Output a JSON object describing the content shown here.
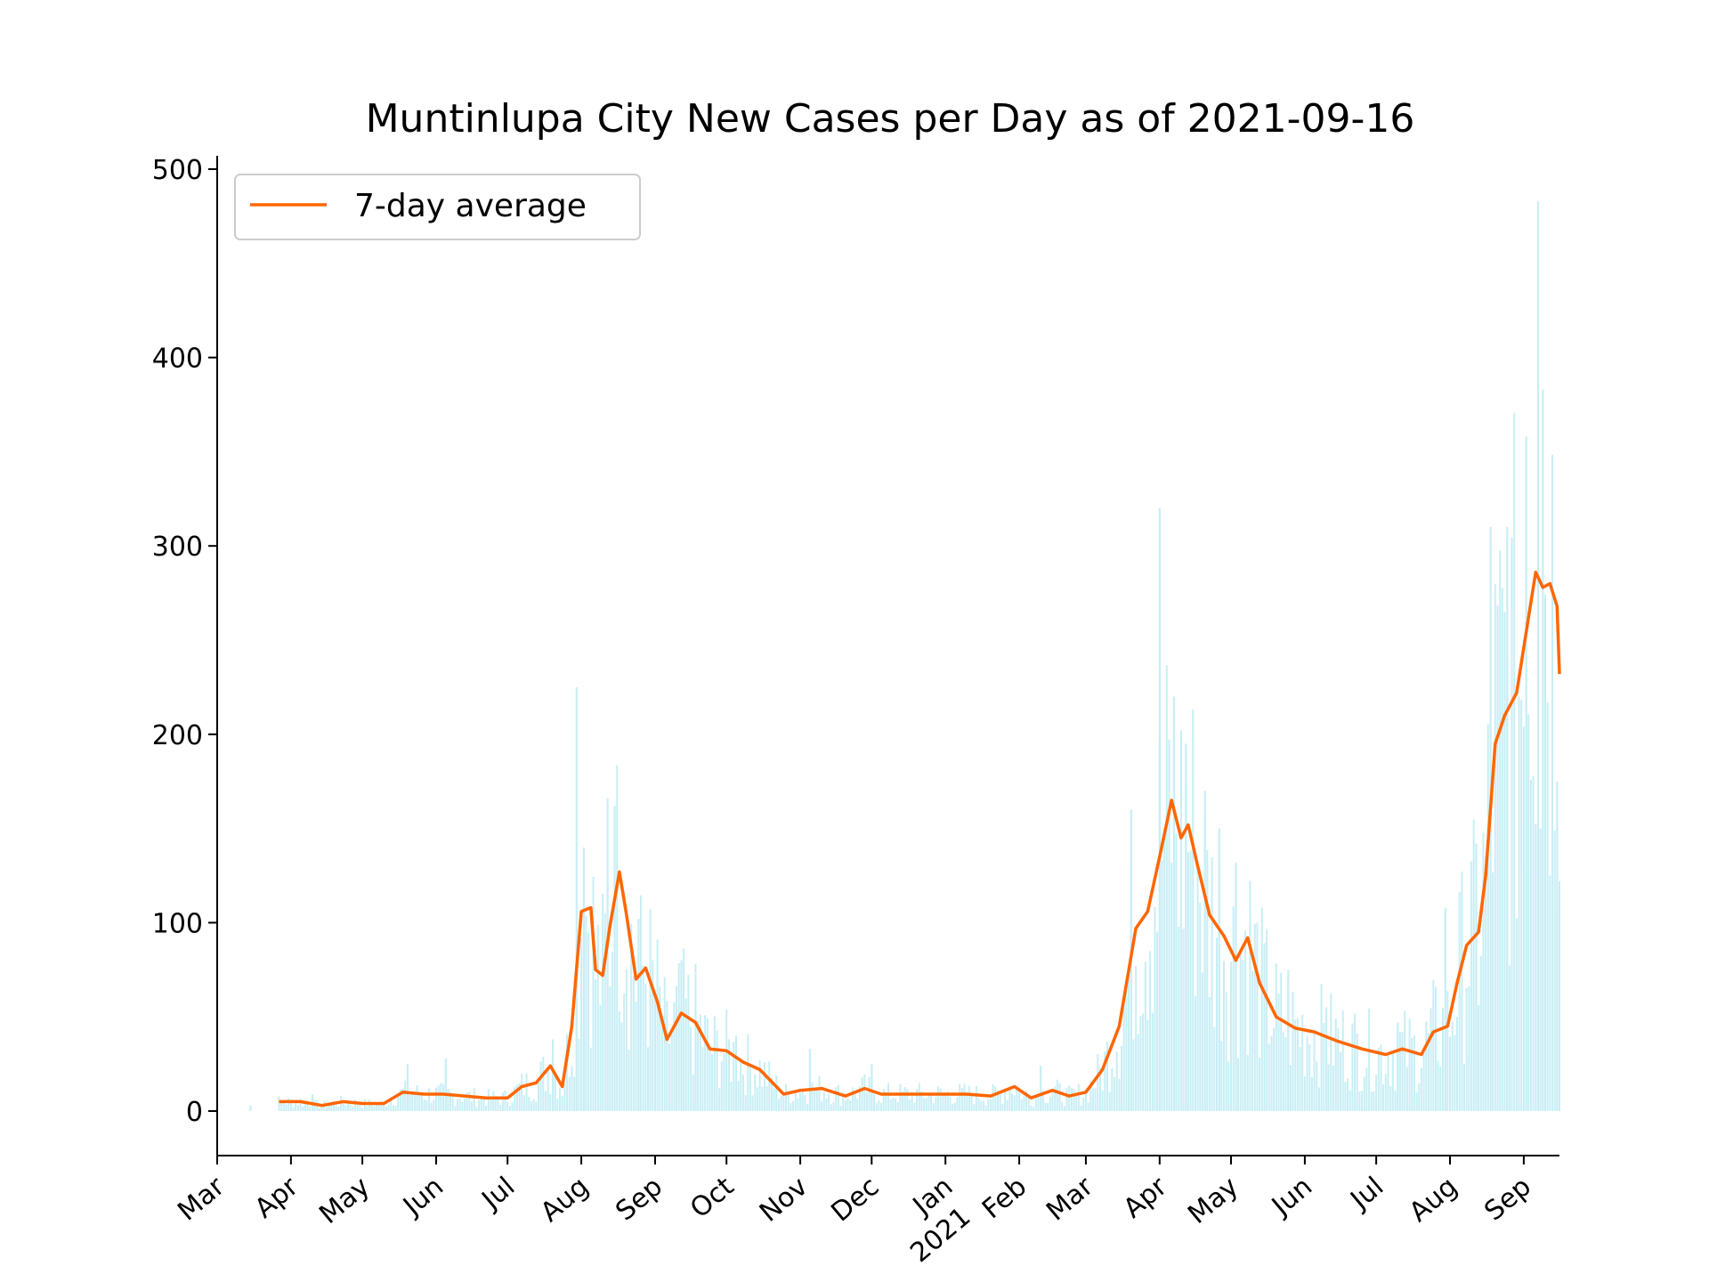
{
  "chart_data": {
    "type": "line",
    "title": "Muntinlupa City New Cases per Day as of 2021-09-16",
    "xlabel": "",
    "ylabel": "",
    "x_range": [
      "2020-03-01",
      "2021-09-16"
    ],
    "ylim": [
      -25,
      510
    ],
    "y_ticks": [
      0,
      100,
      200,
      300,
      400,
      500
    ],
    "x_ticks": [
      {
        "label": "Mar",
        "date": "2020-03-01"
      },
      {
        "label": "Apr",
        "date": "2020-04-01"
      },
      {
        "label": "May",
        "date": "2020-05-01"
      },
      {
        "label": "Jun",
        "date": "2020-06-01"
      },
      {
        "label": "Jul",
        "date": "2020-07-01"
      },
      {
        "label": "Aug",
        "date": "2020-08-01"
      },
      {
        "label": "Sep",
        "date": "2020-09-01"
      },
      {
        "label": "Oct",
        "date": "2020-10-01"
      },
      {
        "label": "Nov",
        "date": "2020-11-01"
      },
      {
        "label": "Dec",
        "date": "2020-12-01"
      },
      {
        "label": "Jan\n2021",
        "date": "2021-01-01"
      },
      {
        "label": "Feb",
        "date": "2021-02-01"
      },
      {
        "label": "Mar",
        "date": "2021-03-01"
      },
      {
        "label": "Apr",
        "date": "2021-04-01"
      },
      {
        "label": "May",
        "date": "2021-05-01"
      },
      {
        "label": "Jun",
        "date": "2021-06-01"
      },
      {
        "label": "Jul",
        "date": "2021-07-01"
      },
      {
        "label": "Aug",
        "date": "2021-08-01"
      },
      {
        "label": "Sep",
        "date": "2021-09-01"
      }
    ],
    "legend": {
      "position": "top-left",
      "entries": [
        "7-day average"
      ]
    },
    "grid": false,
    "colors": {
      "average": "#ff6600",
      "daily": "#c8eef5"
    },
    "series": [
      {
        "name": "7-day average",
        "style": "line",
        "points": [
          [
            "2020-03-27",
            5
          ],
          [
            "2020-04-05",
            5
          ],
          [
            "2020-04-14",
            3
          ],
          [
            "2020-04-23",
            5
          ],
          [
            "2020-05-01",
            4
          ],
          [
            "2020-05-10",
            4
          ],
          [
            "2020-05-18",
            10
          ],
          [
            "2020-05-27",
            9
          ],
          [
            "2020-06-04",
            9
          ],
          [
            "2020-06-13",
            8
          ],
          [
            "2020-06-22",
            7
          ],
          [
            "2020-07-01",
            7
          ],
          [
            "2020-07-07",
            13
          ],
          [
            "2020-07-13",
            15
          ],
          [
            "2020-07-19",
            24
          ],
          [
            "2020-07-24",
            13
          ],
          [
            "2020-07-28",
            45
          ],
          [
            "2020-08-01",
            106
          ],
          [
            "2020-08-05",
            108
          ],
          [
            "2020-08-07",
            75
          ],
          [
            "2020-08-10",
            72
          ],
          [
            "2020-08-13",
            98
          ],
          [
            "2020-08-17",
            127
          ],
          [
            "2020-08-20",
            104
          ],
          [
            "2020-08-24",
            70
          ],
          [
            "2020-08-28",
            76
          ],
          [
            "2020-09-02",
            58
          ],
          [
            "2020-09-06",
            38
          ],
          [
            "2020-09-12",
            52
          ],
          [
            "2020-09-18",
            47
          ],
          [
            "2020-09-24",
            33
          ],
          [
            "2020-10-01",
            32
          ],
          [
            "2020-10-08",
            26
          ],
          [
            "2020-10-15",
            22
          ],
          [
            "2020-10-25",
            9
          ],
          [
            "2020-11-01",
            11
          ],
          [
            "2020-11-10",
            12
          ],
          [
            "2020-11-20",
            8
          ],
          [
            "2020-11-28",
            12
          ],
          [
            "2020-12-05",
            9
          ],
          [
            "2020-12-15",
            9
          ],
          [
            "2020-12-25",
            9
          ],
          [
            "2021-01-01",
            9
          ],
          [
            "2021-01-10",
            9
          ],
          [
            "2021-01-20",
            8
          ],
          [
            "2021-01-30",
            13
          ],
          [
            "2021-02-06",
            7
          ],
          [
            "2021-02-15",
            11
          ],
          [
            "2021-02-22",
            8
          ],
          [
            "2021-03-01",
            10
          ],
          [
            "2021-03-08",
            22
          ],
          [
            "2021-03-15",
            45
          ],
          [
            "2021-03-22",
            97
          ],
          [
            "2021-03-27",
            106
          ],
          [
            "2021-04-01",
            135
          ],
          [
            "2021-04-06",
            165
          ],
          [
            "2021-04-10",
            145
          ],
          [
            "2021-04-13",
            152
          ],
          [
            "2021-04-17",
            130
          ],
          [
            "2021-04-22",
            104
          ],
          [
            "2021-04-28",
            93
          ],
          [
            "2021-05-03",
            80
          ],
          [
            "2021-05-08",
            92
          ],
          [
            "2021-05-13",
            68
          ],
          [
            "2021-05-20",
            50
          ],
          [
            "2021-05-28",
            44
          ],
          [
            "2021-06-05",
            42
          ],
          [
            "2021-06-15",
            37
          ],
          [
            "2021-06-25",
            33
          ],
          [
            "2021-07-05",
            30
          ],
          [
            "2021-07-12",
            33
          ],
          [
            "2021-07-20",
            30
          ],
          [
            "2021-07-25",
            42
          ],
          [
            "2021-07-31",
            45
          ],
          [
            "2021-08-04",
            68
          ],
          [
            "2021-08-08",
            88
          ],
          [
            "2021-08-13",
            95
          ],
          [
            "2021-08-16",
            125
          ],
          [
            "2021-08-20",
            195
          ],
          [
            "2021-08-24",
            210
          ],
          [
            "2021-08-29",
            222
          ],
          [
            "2021-09-03",
            262
          ],
          [
            "2021-09-06",
            286
          ],
          [
            "2021-09-09",
            278
          ],
          [
            "2021-09-12",
            280
          ],
          [
            "2021-09-15",
            268
          ],
          [
            "2021-09-16",
            232
          ]
        ]
      },
      {
        "name": "",
        "style": "bars",
        "points": [
          [
            "2020-03-15",
            3
          ],
          [
            "2020-04-10",
            9
          ],
          [
            "2020-05-20",
            25
          ],
          [
            "2020-06-05",
            28
          ],
          [
            "2020-07-20",
            38
          ],
          [
            "2020-07-30",
            225
          ],
          [
            "2020-08-02",
            140
          ],
          [
            "2020-08-12",
            166
          ],
          [
            "2020-08-15",
            162
          ],
          [
            "2020-08-25",
            102
          ],
          [
            "2020-09-12",
            80
          ],
          [
            "2020-09-18",
            68
          ],
          [
            "2020-10-05",
            40
          ],
          [
            "2020-11-05",
            33
          ],
          [
            "2020-12-01",
            25
          ],
          [
            "2021-02-10",
            24
          ],
          [
            "2021-03-20",
            160
          ],
          [
            "2021-04-01",
            320
          ],
          [
            "2021-04-07",
            220
          ],
          [
            "2021-04-12",
            195
          ],
          [
            "2021-04-20",
            170
          ],
          [
            "2021-04-26",
            150
          ],
          [
            "2021-05-03",
            132
          ],
          [
            "2021-05-25",
            75
          ],
          [
            "2021-06-10",
            55
          ],
          [
            "2021-07-10",
            47
          ],
          [
            "2021-07-30",
            108
          ],
          [
            "2021-08-12",
            142
          ],
          [
            "2021-08-18",
            310
          ],
          [
            "2021-08-25",
            310
          ],
          [
            "2021-09-02",
            358
          ],
          [
            "2021-09-07",
            483
          ],
          [
            "2021-09-09",
            383
          ],
          [
            "2021-09-15",
            175
          ]
        ]
      }
    ]
  }
}
